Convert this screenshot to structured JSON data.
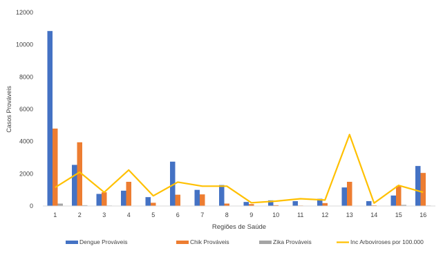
{
  "chart_data": {
    "type": "bar",
    "title": "",
    "xlabel": "Regiões de Saúde",
    "ylabel": "Casos Prováveis",
    "ylim": [
      0,
      12000
    ],
    "yticks": [
      0,
      2000,
      4000,
      6000,
      8000,
      10000,
      12000
    ],
    "grid": false,
    "legend_position": "bottom",
    "categories": [
      "1",
      "2",
      "3",
      "4",
      "5",
      "6",
      "7",
      "8",
      "9",
      "10",
      "11",
      "12",
      "13",
      "14",
      "15",
      "16"
    ],
    "series": [
      {
        "name": "Dengue Prováveis",
        "type": "bar",
        "color": "#4472C4",
        "values": [
          10850,
          2550,
          750,
          950,
          550,
          2750,
          1000,
          1300,
          250,
          350,
          300,
          450,
          1150,
          300,
          650,
          2480
        ]
      },
      {
        "name": "Chik Prováveis",
        "type": "bar",
        "color": "#ED7D31",
        "values": [
          4800,
          3950,
          850,
          1500,
          200,
          700,
          720,
          150,
          120,
          50,
          30,
          180,
          1500,
          40,
          1250,
          2050
        ]
      },
      {
        "name": "Zika Prováveis",
        "type": "bar",
        "color": "#A5A5A5",
        "values": [
          150,
          50,
          30,
          20,
          10,
          20,
          20,
          10,
          10,
          10,
          10,
          20,
          10,
          10,
          70,
          30
        ]
      },
      {
        "name": "Inc Arboviroses por 100.000",
        "type": "line",
        "color": "#FFC000",
        "values": [
          1150,
          2100,
          850,
          2230,
          630,
          1480,
          1230,
          1230,
          200,
          300,
          450,
          370,
          4430,
          180,
          1280,
          850
        ]
      }
    ]
  }
}
